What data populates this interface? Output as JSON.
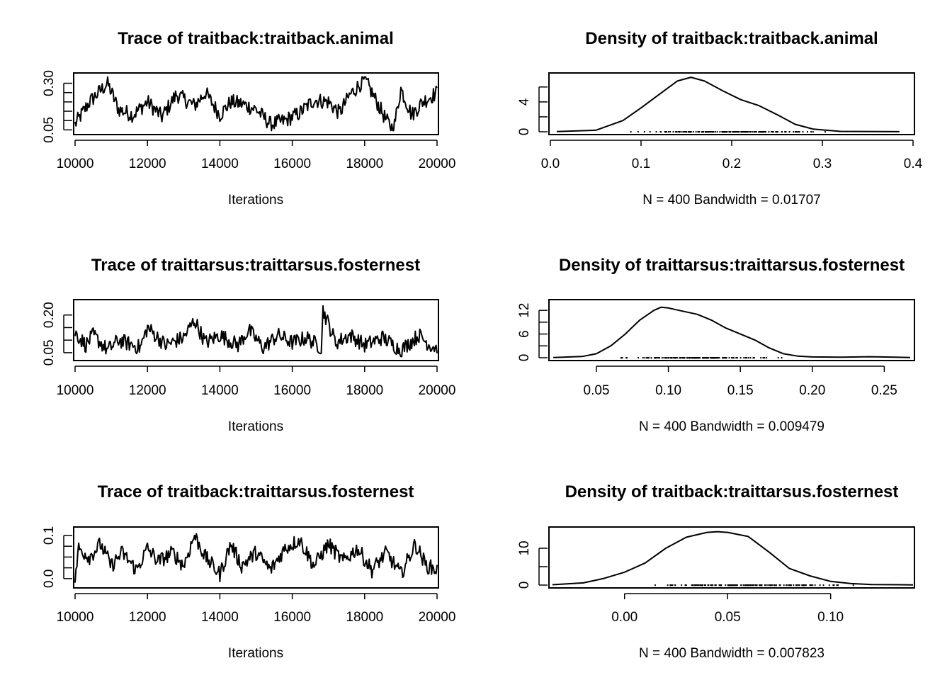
{
  "chart_data": [
    {
      "type": "line",
      "title": "Trace of traitback:traitback.animal",
      "xlabel": "Iterations",
      "ylabel": "",
      "xlim": [
        10000,
        20000
      ],
      "ylim": [
        0.04,
        0.34
      ],
      "x_ticks": [
        10000,
        12000,
        14000,
        16000,
        18000,
        20000
      ],
      "y_ticks": [
        0.05,
        0.3
      ],
      "y_minor_ticks": [
        0.1,
        0.15,
        0.2,
        0.25
      ],
      "series": [
        {
          "x": [
            10000,
            10400,
            10900,
            11200,
            11600,
            12000,
            12400,
            12800,
            13300,
            13600,
            14000,
            14300,
            14600,
            15000,
            15400,
            15800,
            16200,
            16600,
            17000,
            17300,
            17600,
            18000,
            18200,
            18600,
            18800,
            19000,
            19300,
            19600,
            20000
          ],
          "values": [
            0.08,
            0.2,
            0.3,
            0.16,
            0.13,
            0.2,
            0.12,
            0.24,
            0.18,
            0.25,
            0.13,
            0.2,
            0.19,
            0.16,
            0.08,
            0.1,
            0.14,
            0.21,
            0.2,
            0.14,
            0.24,
            0.32,
            0.25,
            0.1,
            0.05,
            0.27,
            0.13,
            0.2,
            0.25
          ]
        }
      ]
    },
    {
      "type": "line",
      "title": "Density of traitback:traitback.animal",
      "xlabel": "N = 400   Bandwidth = 0.01707",
      "ylabel": "",
      "xlim": [
        0.0,
        0.4
      ],
      "ylim": [
        0,
        7.5
      ],
      "x_ticks": [
        0.0,
        0.1,
        0.2,
        0.3,
        0.4
      ],
      "y_ticks": [
        0,
        4
      ],
      "y_minor_ticks": [
        2,
        6
      ],
      "series": [
        {
          "x": [
            0.007,
            0.05,
            0.08,
            0.1,
            0.12,
            0.14,
            0.155,
            0.17,
            0.19,
            0.21,
            0.23,
            0.25,
            0.27,
            0.29,
            0.32,
            0.385
          ],
          "values": [
            0.02,
            0.2,
            1.5,
            3.2,
            5.0,
            6.8,
            7.3,
            6.8,
            5.5,
            4.3,
            3.5,
            2.3,
            1.0,
            0.35,
            0.05,
            0.01
          ]
        }
      ],
      "rug_range": [
        0.06,
        0.335
      ]
    },
    {
      "type": "line",
      "title": "Trace of traittarsus:traittarsus.fosternest",
      "xlabel": "Iterations",
      "ylabel": "",
      "xlim": [
        10000,
        20000
      ],
      "ylim": [
        0.03,
        0.25
      ],
      "x_ticks": [
        10000,
        12000,
        14000,
        16000,
        18000,
        20000
      ],
      "y_ticks": [
        0.05,
        0.2
      ],
      "y_minor_ticks": [
        0.1,
        0.15
      ],
      "series": [
        {
          "x": [
            10000,
            10300,
            10500,
            10900,
            11200,
            11800,
            12000,
            12500,
            13000,
            13300,
            13600,
            14000,
            14500,
            14800,
            15200,
            15600,
            16000,
            16400,
            16800,
            16850,
            17200,
            17600,
            18000,
            18500,
            19000,
            19500,
            19800,
            20000
          ],
          "values": [
            0.13,
            0.08,
            0.12,
            0.06,
            0.1,
            0.07,
            0.15,
            0.08,
            0.11,
            0.18,
            0.09,
            0.12,
            0.08,
            0.14,
            0.07,
            0.12,
            0.09,
            0.11,
            0.07,
            0.22,
            0.09,
            0.12,
            0.08,
            0.11,
            0.06,
            0.12,
            0.08,
            0.07
          ]
        }
      ]
    },
    {
      "type": "line",
      "title": "Density of traittarsus:traittarsus.fosternest",
      "xlabel": "N = 400   Bandwidth = 0.009479",
      "ylabel": "",
      "xlim": [
        0.018,
        0.27
      ],
      "ylim": [
        0,
        14
      ],
      "x_ticks": [
        0.05,
        0.1,
        0.15,
        0.2,
        0.25
      ],
      "y_ticks": [
        0,
        6,
        12
      ],
      "y_minor_ticks": [
        3,
        9
      ],
      "series": [
        {
          "x": [
            0.02,
            0.04,
            0.05,
            0.06,
            0.07,
            0.08,
            0.09,
            0.095,
            0.1,
            0.11,
            0.12,
            0.13,
            0.14,
            0.15,
            0.16,
            0.17,
            0.18,
            0.19,
            0.2,
            0.22,
            0.24,
            0.268
          ],
          "values": [
            0.05,
            0.3,
            1.0,
            3.0,
            6.0,
            9.5,
            12.0,
            12.8,
            12.6,
            11.8,
            11.0,
            9.5,
            7.5,
            6.0,
            4.5,
            2.5,
            1.0,
            0.4,
            0.2,
            0.15,
            0.25,
            0.05
          ]
        }
      ],
      "rug_range": [
        0.048,
        0.19
      ]
    },
    {
      "type": "line",
      "title": "Trace of traitback:traittarsus.fosternest",
      "xlabel": "Iterations",
      "ylabel": "",
      "xlim": [
        10000,
        20000
      ],
      "ylim": [
        -0.015,
        0.113
      ],
      "x_ticks": [
        10000,
        12000,
        14000,
        16000,
        18000,
        20000
      ],
      "y_ticks": [
        0.0,
        0.1
      ],
      "y_minor_ticks": [
        0.025,
        0.05,
        0.075
      ],
      "series": [
        {
          "x": [
            10000,
            10100,
            10400,
            10700,
            11000,
            11300,
            11700,
            12000,
            12300,
            12700,
            13000,
            13300,
            13600,
            14000,
            14300,
            14600,
            15000,
            15400,
            15800,
            16200,
            16600,
            17000,
            17400,
            17800,
            18200,
            18600,
            19000,
            19400,
            19700,
            20000
          ],
          "values": [
            0.0,
            0.07,
            0.05,
            0.08,
            0.03,
            0.06,
            0.02,
            0.07,
            0.04,
            0.06,
            0.03,
            0.1,
            0.05,
            0.01,
            0.08,
            0.03,
            0.06,
            0.02,
            0.07,
            0.09,
            0.03,
            0.08,
            0.04,
            0.07,
            0.02,
            0.06,
            0.01,
            0.08,
            0.03,
            0.02
          ]
        }
      ]
    },
    {
      "type": "line",
      "title": "Density of traitback:traittarsus.fosternest",
      "xlabel": "N = 400   Bandwidth = 0.007823",
      "ylabel": "",
      "xlim": [
        -0.036,
        0.14
      ],
      "ylim": [
        0,
        15
      ],
      "x_ticks": [
        0.0,
        0.05,
        0.1
      ],
      "y_ticks": [
        0,
        10
      ],
      "y_minor_ticks": [
        5
      ],
      "series": [
        {
          "x": [
            -0.035,
            -0.02,
            -0.01,
            0.0,
            0.01,
            0.02,
            0.03,
            0.04,
            0.045,
            0.05,
            0.06,
            0.07,
            0.08,
            0.09,
            0.1,
            0.11,
            0.12,
            0.14
          ],
          "values": [
            0.1,
            0.6,
            1.8,
            3.5,
            6.0,
            10.0,
            13.0,
            14.3,
            14.5,
            14.3,
            13.2,
            9.0,
            4.5,
            2.5,
            1.0,
            0.4,
            0.15,
            0.05
          ]
        }
      ],
      "rug_range": [
        -0.01,
        0.12
      ]
    }
  ]
}
